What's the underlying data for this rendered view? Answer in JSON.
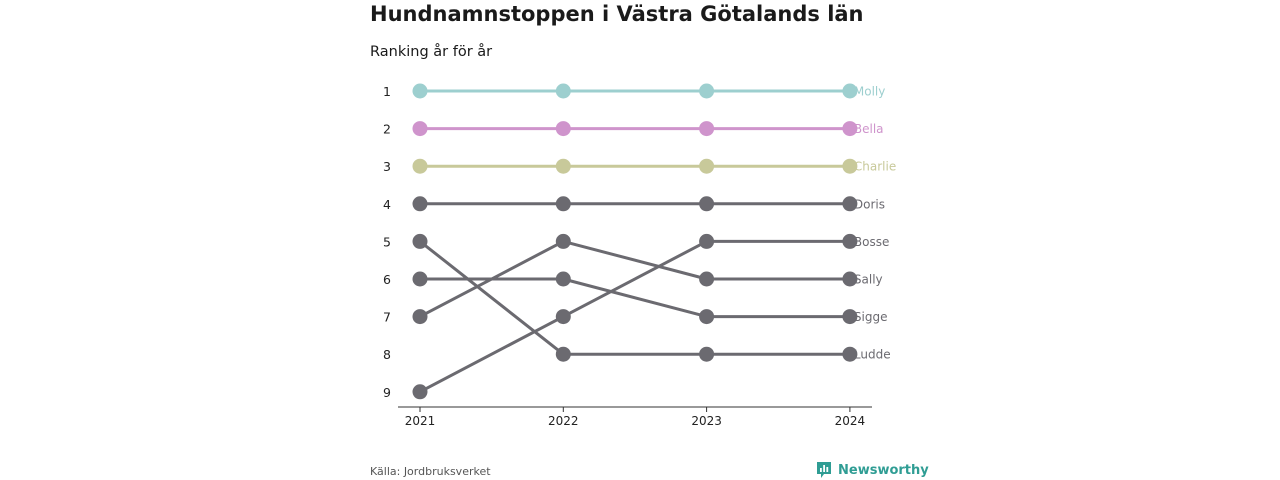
{
  "title": "Hundnamnstoppen i Västra Götalands län",
  "subtitle": "Ranking år för år",
  "source": "Källa: Jordbruksverket",
  "brand": "Newsworthy",
  "colors": {
    "Molly": "#9dcfcf",
    "Bella": "#cf94cc",
    "Charlie": "#c8c99a",
    "default": "#6b6a70",
    "brand": "#2f9d94"
  },
  "chart_data": {
    "type": "line",
    "subtype": "bump",
    "x": [
      "2021",
      "2022",
      "2023",
      "2024"
    ],
    "y_ticks": [
      "1",
      "2",
      "3",
      "4",
      "5",
      "6",
      "7",
      "8",
      "9"
    ],
    "y_reversed": true,
    "ylim": [
      1,
      9
    ],
    "grid": false,
    "series": [
      {
        "name": "Molly",
        "values": [
          1,
          1,
          1,
          1
        ]
      },
      {
        "name": "Bella",
        "values": [
          2,
          2,
          2,
          2
        ]
      },
      {
        "name": "Charlie",
        "values": [
          3,
          3,
          3,
          3
        ]
      },
      {
        "name": "Doris",
        "values": [
          4,
          4,
          4,
          4
        ]
      },
      {
        "name": "Bosse",
        "values": [
          9,
          7,
          5,
          5
        ]
      },
      {
        "name": "Sally",
        "values": [
          7,
          5,
          6,
          6
        ]
      },
      {
        "name": "Sigge",
        "values": [
          6,
          6,
          7,
          7
        ]
      },
      {
        "name": "Ludde",
        "values": [
          5,
          8,
          8,
          8
        ]
      }
    ]
  }
}
